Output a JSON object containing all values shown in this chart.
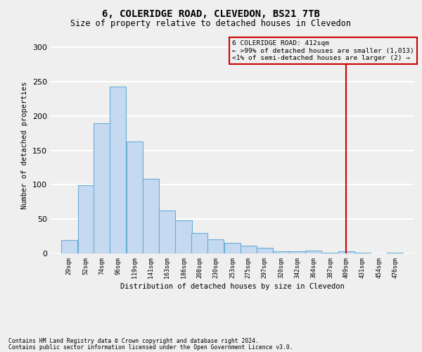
{
  "title": "6, COLERIDGE ROAD, CLEVEDON, BS21 7TB",
  "subtitle": "Size of property relative to detached houses in Clevedon",
  "xlabel_bottom": "Distribution of detached houses by size in Clevedon",
  "ylabel": "Number of detached properties",
  "footnote1": "Contains HM Land Registry data © Crown copyright and database right 2024.",
  "footnote2": "Contains public sector information licensed under the Open Government Licence v3.0.",
  "categories": [
    "29sqm",
    "52sqm",
    "74sqm",
    "96sqm",
    "119sqm",
    "141sqm",
    "163sqm",
    "186sqm",
    "208sqm",
    "230sqm",
    "253sqm",
    "275sqm",
    "297sqm",
    "320sqm",
    "342sqm",
    "364sqm",
    "387sqm",
    "409sqm",
    "431sqm",
    "454sqm",
    "476sqm"
  ],
  "values": [
    19,
    99,
    190,
    243,
    163,
    109,
    62,
    48,
    30,
    20,
    15,
    11,
    8,
    3,
    3,
    4,
    1,
    3,
    1,
    0,
    1
  ],
  "bar_color": "#c5d9f0",
  "bar_edge_color": "#6aaed6",
  "property_line_color": "#cc0000",
  "annotation_line1": "6 COLERIDGE ROAD: 412sqm",
  "annotation_line2": "← >99% of detached houses are smaller (1,013)",
  "annotation_line3": "<1% of semi-detached houses are larger (2) →",
  "annotation_box_edgecolor": "#cc0000",
  "ylim_max": 315,
  "background_color": "#efefef",
  "grid_color": "#ffffff",
  "title_fontsize": 10,
  "subtitle_fontsize": 8.5,
  "bin_width": 23,
  "bin_centers": [
    29,
    52,
    74,
    96,
    119,
    141,
    163,
    186,
    208,
    230,
    253,
    275,
    297,
    320,
    342,
    364,
    387,
    409,
    431,
    454,
    476
  ],
  "property_value": 409,
  "yticks": [
    0,
    50,
    100,
    150,
    200,
    250,
    300
  ]
}
